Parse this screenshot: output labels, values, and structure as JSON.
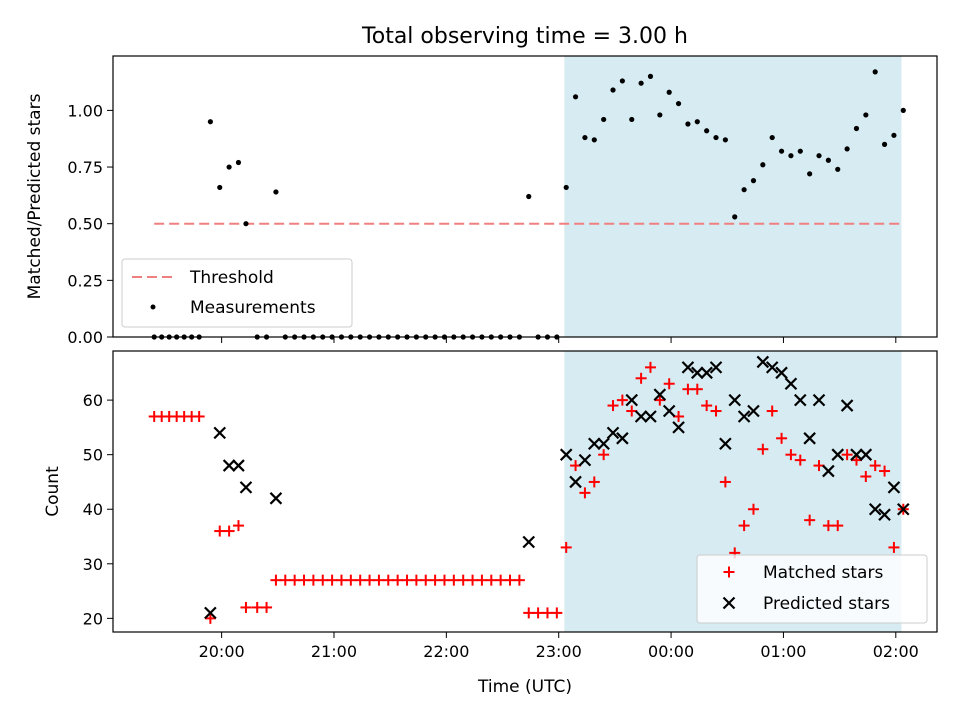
{
  "title": "Total observing time = 3.00 h",
  "xlabel": "Time (UTC)",
  "colors": {
    "threshold": "#f08080",
    "measurement": "#000000",
    "matched": "#ff0000",
    "predicted": "#000000",
    "observing_span": "#add8e6"
  },
  "chart_data": [
    {
      "type": "scatter",
      "ylabel": "Matched/Predicted stars",
      "xlim": [
        "19:02",
        "02:22"
      ],
      "ylim": [
        0,
        1.24
      ],
      "xticks": [
        "20:00",
        "21:00",
        "22:00",
        "23:00",
        "00:00",
        "01:00",
        "02:00"
      ],
      "yticks": [
        "0.00",
        "0.25",
        "0.50",
        "0.75",
        "1.00"
      ],
      "shaded_span": [
        "23:03",
        "02:03"
      ],
      "legend_position": "lower-left",
      "threshold": {
        "name": "Threshold",
        "y": 0.5,
        "x": [
          "19:24",
          "02:03"
        ]
      },
      "series": [
        {
          "name": "Measurements",
          "points": [
            [
              "19:24",
              0
            ],
            [
              "19:28",
              0
            ],
            [
              "19:32",
              0
            ],
            [
              "19:36",
              0
            ],
            [
              "19:40",
              0
            ],
            [
              "19:44",
              0
            ],
            [
              "19:48",
              0
            ],
            [
              "19:54",
              0.95
            ],
            [
              "19:59",
              0.66
            ],
            [
              "20:04",
              0.75
            ],
            [
              "20:09",
              0.77
            ],
            [
              "20:13",
              0.5
            ],
            [
              "20:19",
              0
            ],
            [
              "20:24",
              0
            ],
            [
              "20:29",
              0.64
            ],
            [
              "20:34",
              0
            ],
            [
              "20:39",
              0
            ],
            [
              "20:44",
              0
            ],
            [
              "20:49",
              0
            ],
            [
              "20:54",
              0
            ],
            [
              "20:59",
              0
            ],
            [
              "21:04",
              0
            ],
            [
              "21:09",
              0
            ],
            [
              "21:14",
              0
            ],
            [
              "21:19",
              0
            ],
            [
              "21:24",
              0
            ],
            [
              "21:29",
              0
            ],
            [
              "21:34",
              0
            ],
            [
              "21:39",
              0
            ],
            [
              "21:44",
              0
            ],
            [
              "21:49",
              0
            ],
            [
              "21:54",
              0
            ],
            [
              "21:59",
              0
            ],
            [
              "22:04",
              0
            ],
            [
              "22:09",
              0
            ],
            [
              "22:14",
              0
            ],
            [
              "22:19",
              0
            ],
            [
              "22:24",
              0
            ],
            [
              "22:29",
              0
            ],
            [
              "22:34",
              0
            ],
            [
              "22:39",
              0
            ],
            [
              "22:44",
              0.62
            ],
            [
              "22:49",
              0
            ],
            [
              "22:54",
              0
            ],
            [
              "22:59",
              0
            ],
            [
              "23:04",
              0.66
            ],
            [
              "23:09",
              1.06
            ],
            [
              "23:14",
              0.88
            ],
            [
              "23:19",
              0.87
            ],
            [
              "23:24",
              0.96
            ],
            [
              "23:29",
              1.09
            ],
            [
              "23:34",
              1.13
            ],
            [
              "23:39",
              0.96
            ],
            [
              "23:44",
              1.12
            ],
            [
              "23:49",
              1.15
            ],
            [
              "23:54",
              0.98
            ],
            [
              "23:59",
              1.08
            ],
            [
              "00:04",
              1.03
            ],
            [
              "00:09",
              0.94
            ],
            [
              "00:14",
              0.95
            ],
            [
              "00:19",
              0.91
            ],
            [
              "00:24",
              0.88
            ],
            [
              "00:29",
              0.87
            ],
            [
              "00:34",
              0.53
            ],
            [
              "00:39",
              0.65
            ],
            [
              "00:44",
              0.69
            ],
            [
              "00:49",
              0.76
            ],
            [
              "00:54",
              0.88
            ],
            [
              "00:59",
              0.82
            ],
            [
              "01:04",
              0.8
            ],
            [
              "01:09",
              0.82
            ],
            [
              "01:14",
              0.72
            ],
            [
              "01:19",
              0.8
            ],
            [
              "01:24",
              0.78
            ],
            [
              "01:29",
              0.74
            ],
            [
              "01:34",
              0.83
            ],
            [
              "01:39",
              0.92
            ],
            [
              "01:44",
              0.98
            ],
            [
              "01:49",
              1.17
            ],
            [
              "01:54",
              0.85
            ],
            [
              "01:59",
              0.89
            ],
            [
              "02:04",
              1.0
            ]
          ]
        }
      ]
    },
    {
      "type": "scatter",
      "ylabel": "Count",
      "xlim": [
        "19:02",
        "02:22"
      ],
      "ylim": [
        17.5,
        69
      ],
      "xticks": [
        "20:00",
        "21:00",
        "22:00",
        "23:00",
        "00:00",
        "01:00",
        "02:00"
      ],
      "yticks": [
        "20",
        "30",
        "40",
        "50",
        "60"
      ],
      "shaded_span": [
        "23:03",
        "02:03"
      ],
      "legend_position": "lower-right",
      "series": [
        {
          "name": "Matched stars",
          "marker": "plus",
          "points": [
            [
              "19:24",
              57
            ],
            [
              "19:28",
              57
            ],
            [
              "19:32",
              57
            ],
            [
              "19:36",
              57
            ],
            [
              "19:40",
              57
            ],
            [
              "19:44",
              57
            ],
            [
              "19:48",
              57
            ],
            [
              "19:54",
              20
            ],
            [
              "19:59",
              36
            ],
            [
              "20:04",
              36
            ],
            [
              "20:09",
              37
            ],
            [
              "20:13",
              22
            ],
            [
              "20:19",
              22
            ],
            [
              "20:24",
              22
            ],
            [
              "20:29",
              27
            ],
            [
              "20:34",
              27
            ],
            [
              "20:39",
              27
            ],
            [
              "20:44",
              27
            ],
            [
              "20:49",
              27
            ],
            [
              "20:54",
              27
            ],
            [
              "20:59",
              27
            ],
            [
              "21:04",
              27
            ],
            [
              "21:09",
              27
            ],
            [
              "21:14",
              27
            ],
            [
              "21:19",
              27
            ],
            [
              "21:24",
              27
            ],
            [
              "21:29",
              27
            ],
            [
              "21:34",
              27
            ],
            [
              "21:39",
              27
            ],
            [
              "21:44",
              27
            ],
            [
              "21:49",
              27
            ],
            [
              "21:54",
              27
            ],
            [
              "21:59",
              27
            ],
            [
              "22:04",
              27
            ],
            [
              "22:09",
              27
            ],
            [
              "22:14",
              27
            ],
            [
              "22:19",
              27
            ],
            [
              "22:24",
              27
            ],
            [
              "22:29",
              27
            ],
            [
              "22:34",
              27
            ],
            [
              "22:39",
              27
            ],
            [
              "22:44",
              21
            ],
            [
              "22:49",
              21
            ],
            [
              "22:54",
              21
            ],
            [
              "22:59",
              21
            ],
            [
              "23:04",
              33
            ],
            [
              "23:09",
              48
            ],
            [
              "23:14",
              43
            ],
            [
              "23:19",
              45
            ],
            [
              "23:24",
              50
            ],
            [
              "23:29",
              59
            ],
            [
              "23:34",
              60
            ],
            [
              "23:39",
              58
            ],
            [
              "23:44",
              64
            ],
            [
              "23:49",
              66
            ],
            [
              "23:54",
              60
            ],
            [
              "23:59",
              63
            ],
            [
              "00:04",
              57
            ],
            [
              "00:09",
              62
            ],
            [
              "00:14",
              62
            ],
            [
              "00:19",
              59
            ],
            [
              "00:24",
              58
            ],
            [
              "00:29",
              45
            ],
            [
              "00:34",
              32
            ],
            [
              "00:39",
              37
            ],
            [
              "00:44",
              40
            ],
            [
              "00:49",
              51
            ],
            [
              "00:54",
              58
            ],
            [
              "00:59",
              53
            ],
            [
              "01:04",
              50
            ],
            [
              "01:09",
              49
            ],
            [
              "01:14",
              38
            ],
            [
              "01:19",
              48
            ],
            [
              "01:24",
              37
            ],
            [
              "01:29",
              37
            ],
            [
              "01:34",
              50
            ],
            [
              "01:39",
              49
            ],
            [
              "01:44",
              46
            ],
            [
              "01:49",
              48
            ],
            [
              "01:54",
              47
            ],
            [
              "01:59",
              33
            ],
            [
              "02:04",
              40
            ]
          ]
        },
        {
          "name": "Predicted stars",
          "marker": "x",
          "points": [
            [
              "19:54",
              21
            ],
            [
              "19:59",
              54
            ],
            [
              "20:04",
              48
            ],
            [
              "20:09",
              48
            ],
            [
              "20:13",
              44
            ],
            [
              "20:29",
              42
            ],
            [
              "22:44",
              34
            ],
            [
              "23:04",
              50
            ],
            [
              "23:09",
              45
            ],
            [
              "23:14",
              49
            ],
            [
              "23:19",
              52
            ],
            [
              "23:24",
              52
            ],
            [
              "23:29",
              54
            ],
            [
              "23:34",
              53
            ],
            [
              "23:39",
              60
            ],
            [
              "23:44",
              57
            ],
            [
              "23:49",
              57
            ],
            [
              "23:54",
              61
            ],
            [
              "23:59",
              58
            ],
            [
              "00:04",
              55
            ],
            [
              "00:09",
              66
            ],
            [
              "00:14",
              65
            ],
            [
              "00:19",
              65
            ],
            [
              "00:24",
              66
            ],
            [
              "00:29",
              52
            ],
            [
              "00:34",
              60
            ],
            [
              "00:39",
              57
            ],
            [
              "00:44",
              58
            ],
            [
              "00:49",
              67
            ],
            [
              "00:54",
              66
            ],
            [
              "00:59",
              65
            ],
            [
              "01:04",
              63
            ],
            [
              "01:09",
              60
            ],
            [
              "01:14",
              53
            ],
            [
              "01:19",
              60
            ],
            [
              "01:24",
              47
            ],
            [
              "01:29",
              50
            ],
            [
              "01:34",
              59
            ],
            [
              "01:39",
              50
            ],
            [
              "01:44",
              50
            ],
            [
              "01:49",
              40
            ],
            [
              "01:54",
              39
            ],
            [
              "01:59",
              44
            ],
            [
              "02:04",
              40
            ]
          ]
        }
      ]
    }
  ]
}
